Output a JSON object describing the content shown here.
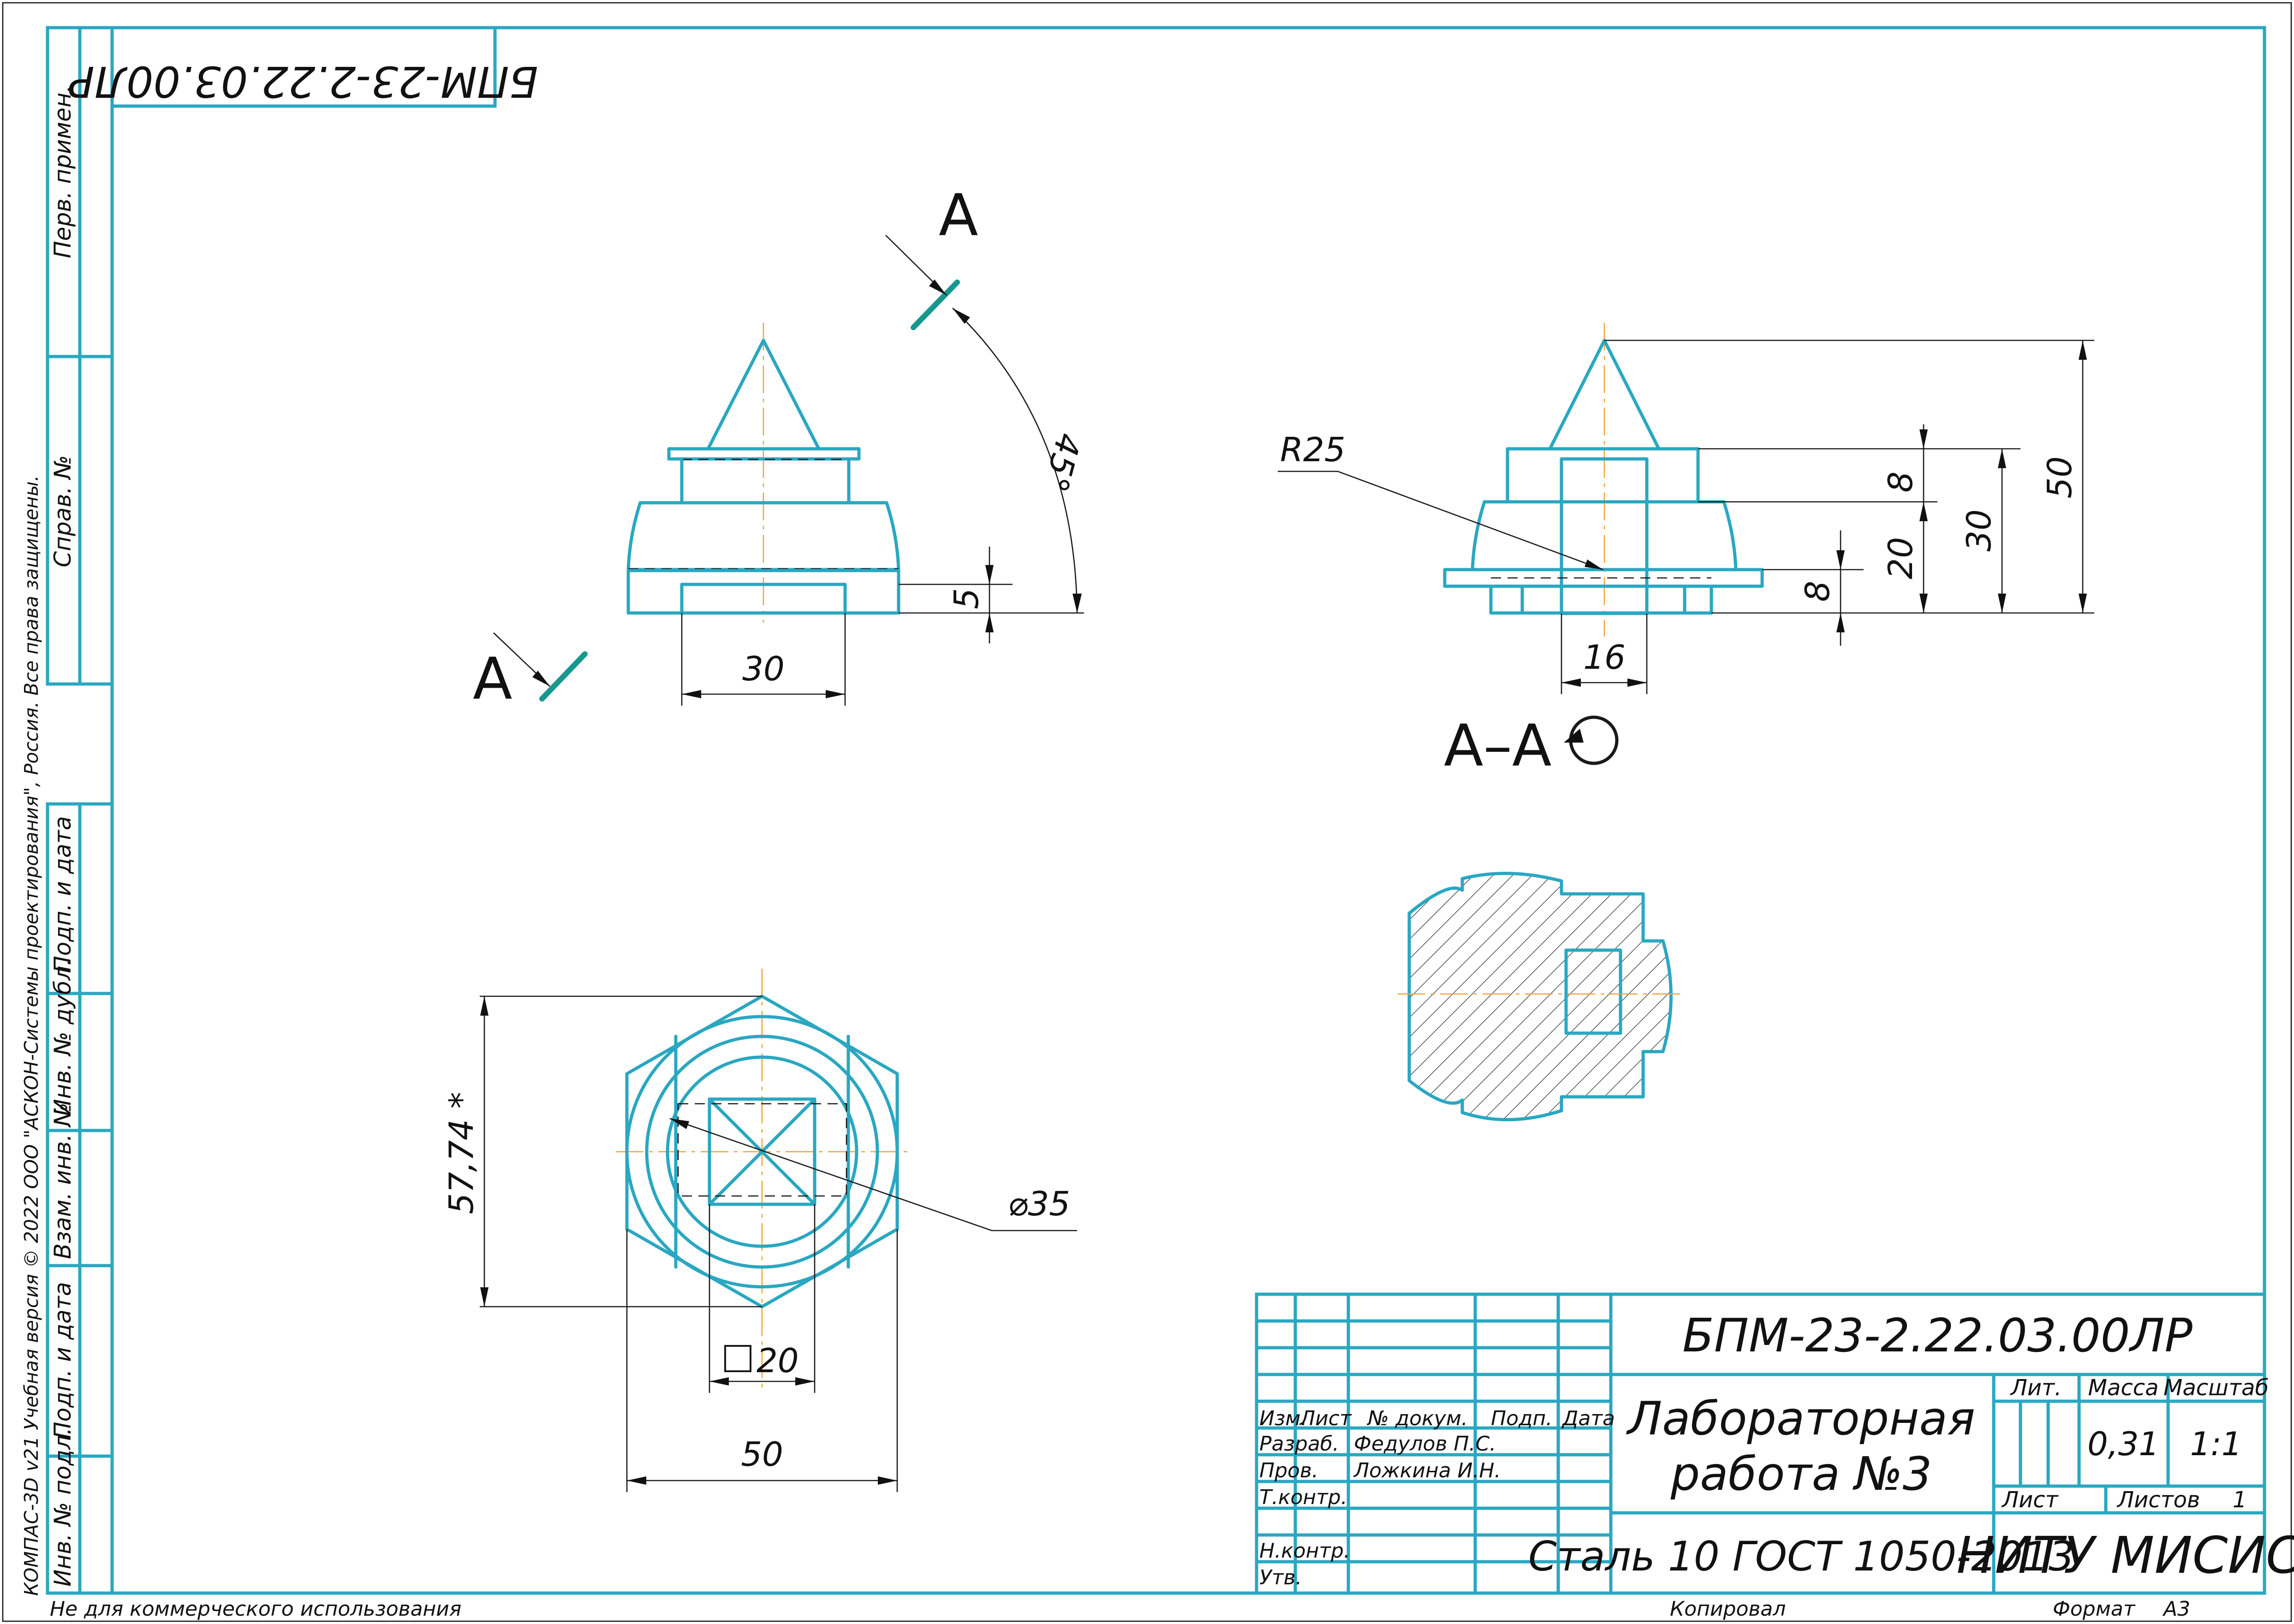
{
  "document": {
    "designation": "БПМ-23-2.22.03.00ЛР",
    "designation_rotated": "БПМ-23-2.22.03.00ЛР",
    "title_line1": "Лабораторная",
    "title_line2": "работа №3",
    "material": "Сталь 10  ГОСТ 1050-2013",
    "organization": "НИТУ МИСИС",
    "mass": "0,31",
    "scale": "1:1",
    "sheet_label": "Лист",
    "sheets_label": "Листов",
    "sheets_count": "1",
    "format_label": "Формат",
    "format_value": "А3",
    "copied_label": "Копировал",
    "noncommercial": "Не для коммерческого использования",
    "software": "КОМПАС-3D v21 Учебная версия © 2022 ООО \"АСКОН-Системы проектирования\", Россия. Все права защищены."
  },
  "title_block": {
    "col_izm": "Изм.",
    "col_list": "Лист",
    "col_doc": "№ докум.",
    "col_sign": "Подп.",
    "col_date": "Дата",
    "razrab_label": "Разраб.",
    "razrab_name": "Федулов П.С.",
    "prov_label": "Пров.",
    "prov_name": "Ложкина И.Н.",
    "tkontr_label": "Т.контр.",
    "nkontr_label": "Н.контр.",
    "utv_label": "Утв.",
    "lit_label": "Лит.",
    "mass_label": "Масса",
    "scale_label": "Масштаб"
  },
  "side_columns": {
    "perv_primen": "Перв. примен.",
    "sprav_no": "Справ. №",
    "podp_data_1": "Подп. и дата",
    "inv_dubl": "Инв. № дубл.",
    "vzam_inv": "Взам. инв. №",
    "podp_data_2": "Подп. и дата",
    "inv_podl": "Инв. № подл."
  },
  "dimensions": {
    "front_angle": "45°",
    "front_height": "5",
    "front_width": "30",
    "section_radius": "R25",
    "section_8_top": "8",
    "section_20": "20",
    "section_30": "30",
    "section_50": "50",
    "section_8_bottom": "8",
    "section_16": "16",
    "top_hex_height": "57,74 *",
    "top_diameter": "⌀35",
    "top_square": "20",
    "top_width": "50"
  },
  "labels": {
    "cut_letter_top": "А",
    "cut_letter_bottom": "А",
    "section_title": "А–А"
  },
  "colors": {
    "main_line": "#2aa7c1",
    "cut_line": "#17988f",
    "axis_line": "#f0a33c"
  }
}
